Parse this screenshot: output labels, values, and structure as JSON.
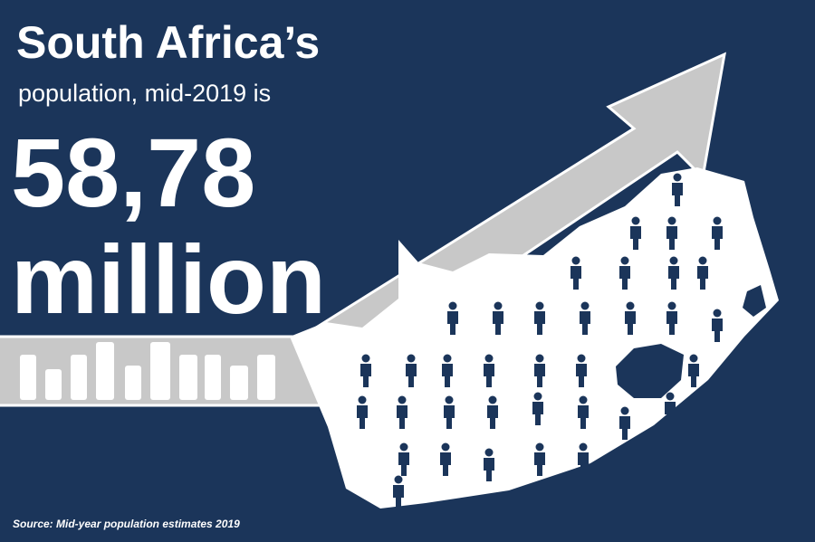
{
  "title": "South Africa’s",
  "subtitle": "population, mid-2019 is",
  "figure": "58,78",
  "unit": "million",
  "source": "Source: Mid-year population estimates 2019"
}
